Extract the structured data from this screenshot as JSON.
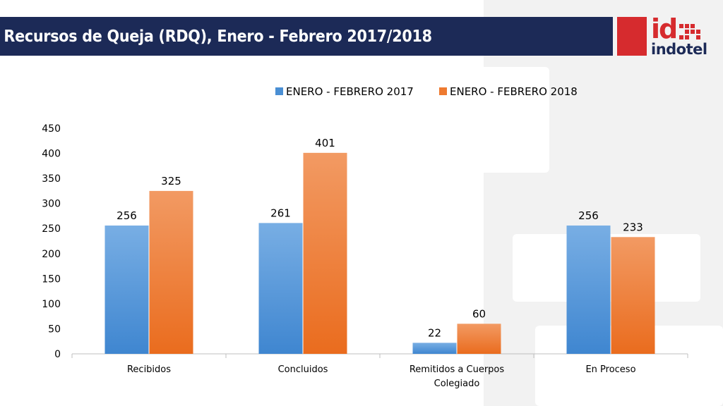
{
  "slide": {
    "title": "Recursos de Queja (RDQ), Enero - Febrero 2017/2018",
    "logo": {
      "id_text": "id",
      "name": "indotel",
      "color": "#d62b2e",
      "navy": "#1c2a57"
    }
  },
  "chart_data": {
    "type": "bar",
    "categories": [
      "Recibidos",
      "Concluidos",
      "Remitidos a Cuerpos Colegiado",
      "En Proceso"
    ],
    "series": [
      {
        "name": "ENERO - FEBRERO 2017",
        "values": [
          256,
          261,
          22,
          256
        ],
        "color": "#4a8fd4"
      },
      {
        "name": "ENERO - FEBRERO 2018",
        "values": [
          325,
          401,
          60,
          233
        ],
        "color": "#ee7a30"
      }
    ],
    "ylim": [
      0,
      450
    ],
    "yticks": [
      0,
      50,
      100,
      150,
      200,
      250,
      300,
      350,
      400,
      450
    ],
    "legend": "top",
    "grid": false,
    "data_labels": true
  }
}
